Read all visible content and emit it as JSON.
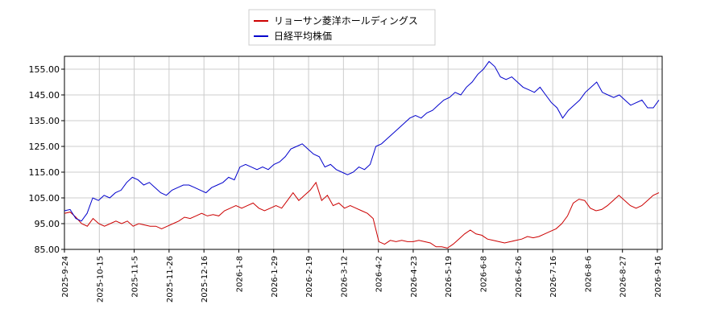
{
  "chart_data": {
    "type": "line",
    "title": "",
    "xlabel": "",
    "ylabel": "",
    "ylim": [
      85,
      160
    ],
    "y_ticks": [
      "85.00",
      "95.00",
      "105.00",
      "115.00",
      "125.00",
      "135.00",
      "145.00",
      "155.00"
    ],
    "x_tick_labels": [
      "2025-9-24",
      "2025-10-15",
      "2025-11-5",
      "2025-11-26",
      "2025-12-16",
      "2026-1-8",
      "2026-1-29",
      "2026-2-19",
      "2026-3-12",
      "2026-4-2",
      "2026-4-23",
      "2026-5-19",
      "2026-6-8",
      "2026-6-26",
      "2026-7-16",
      "2026-8-6",
      "2026-8-27",
      "2026-9-16"
    ],
    "grid": true,
    "legend": "top-center",
    "series": [
      {
        "name": "リョーサン菱洋ホールディングス",
        "color": "#cc0000",
        "values": [
          99,
          99.5,
          97.5,
          95,
          94,
          97,
          95,
          94,
          95,
          96,
          95,
          96,
          94,
          95,
          94.5,
          94,
          94,
          93,
          94,
          95,
          96,
          97.5,
          97,
          98,
          99,
          98,
          98.5,
          98,
          100,
          101,
          102,
          101,
          102,
          103,
          101,
          100,
          101,
          102,
          101,
          104,
          107,
          104,
          106,
          108,
          111,
          104,
          106,
          102,
          103,
          101,
          102,
          101,
          100,
          99,
          97,
          88,
          87,
          88.5,
          88,
          88.5,
          88,
          88,
          88.5,
          88,
          87.5,
          86,
          86,
          85.5,
          87,
          89,
          91,
          92.5,
          91,
          90.5,
          89,
          88.5,
          88,
          87.5,
          88,
          88.5,
          89,
          90,
          89.5,
          90,
          91,
          92,
          93,
          95,
          98,
          103,
          104.5,
          104,
          101,
          100,
          100.5,
          102,
          104,
          106,
          104,
          102,
          101,
          102,
          104,
          106,
          107
        ]
      },
      {
        "name": "日経平均株価",
        "color": "#0000cc",
        "values": [
          100,
          100.5,
          97,
          96,
          99,
          105,
          104,
          106,
          105,
          107,
          108,
          111,
          113,
          112,
          110,
          111,
          109,
          107,
          106,
          108,
          109,
          110,
          110,
          109,
          108,
          107,
          109,
          110,
          111,
          113,
          112,
          117,
          118,
          117,
          116,
          117,
          116,
          118,
          119,
          121,
          124,
          125,
          126,
          124,
          122,
          121,
          117,
          118,
          116,
          115,
          114,
          115,
          117,
          116,
          118,
          125,
          126,
          128,
          130,
          132,
          134,
          136,
          137,
          136,
          138,
          139,
          141,
          143,
          144,
          146,
          145,
          148,
          150,
          153,
          155,
          158,
          156,
          152,
          151,
          152,
          150,
          148,
          147,
          146,
          148,
          145,
          142,
          140,
          136,
          139,
          141,
          143,
          146,
          148,
          150,
          146,
          145,
          144,
          145,
          143,
          141,
          142,
          143,
          140,
          140,
          143
        ]
      }
    ]
  }
}
